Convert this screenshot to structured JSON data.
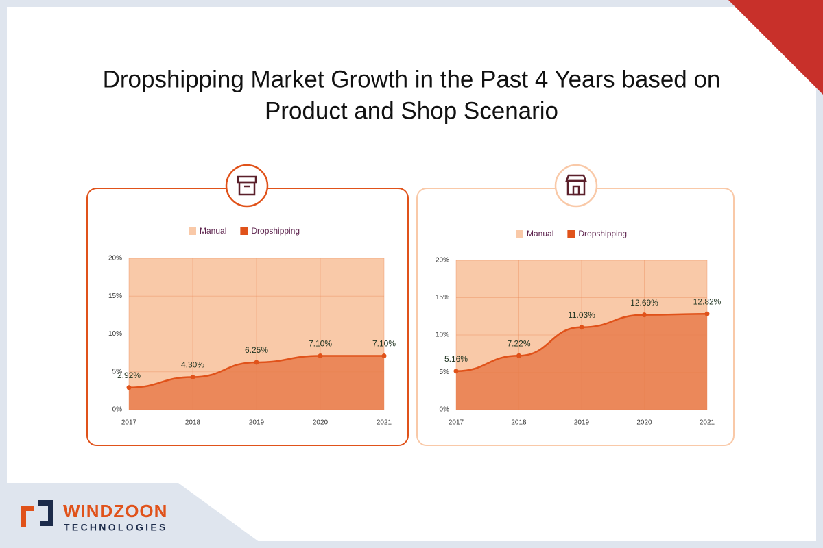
{
  "title": [
    "Dropshipping Market Growth in the Past 4 Years based on",
    "Product and Shop Scenario"
  ],
  "brand": "WINDZOON",
  "tagline": "TECHNOLOGIES",
  "chart_data": [
    {
      "type": "area",
      "categories": [
        "2017",
        "2018",
        "2019",
        "2020",
        "2021"
      ],
      "series": [
        {
          "name": "Manual",
          "color": "#f9c9a8",
          "values": [
            20,
            20,
            20,
            20,
            20
          ]
        },
        {
          "name": "Dropshipping",
          "color": "#e0521a",
          "values": [
            2.92,
            4.3,
            6.25,
            7.1,
            7.1
          ],
          "value_labels": [
            "2.92%",
            "4.30%",
            "6.25%",
            "7.10%",
            "7.10%"
          ]
        }
      ],
      "ylim": [
        0,
        20
      ],
      "yticks": [
        {
          "value": 0,
          "label": "0%"
        },
        {
          "value": 5,
          "label": "5%"
        },
        {
          "value": 10,
          "label": "10%"
        },
        {
          "value": 15,
          "label": "15%"
        },
        {
          "value": 20,
          "label": "20%"
        }
      ],
      "grid": true
    },
    {
      "type": "area",
      "categories": [
        "2017",
        "2018",
        "2019",
        "2020",
        "2021"
      ],
      "series": [
        {
          "name": "Manual",
          "color": "#f9c9a8",
          "values": [
            20,
            20,
            20,
            20,
            20
          ]
        },
        {
          "name": "Dropshipping",
          "color": "#e0521a",
          "values": [
            5.16,
            7.22,
            11.03,
            12.69,
            12.82
          ],
          "value_labels": [
            "5.16%",
            "7.22%",
            "11.03%",
            "12.69%",
            "12.82%"
          ]
        }
      ],
      "ylim": [
        0,
        20
      ],
      "yticks": [
        {
          "value": 0,
          "label": "0%"
        },
        {
          "value": 5,
          "label": "5%"
        },
        {
          "value": 10,
          "label": "10%"
        },
        {
          "value": 15,
          "label": "15%"
        },
        {
          "value": 20,
          "label": "20%"
        }
      ],
      "grid": true
    }
  ]
}
